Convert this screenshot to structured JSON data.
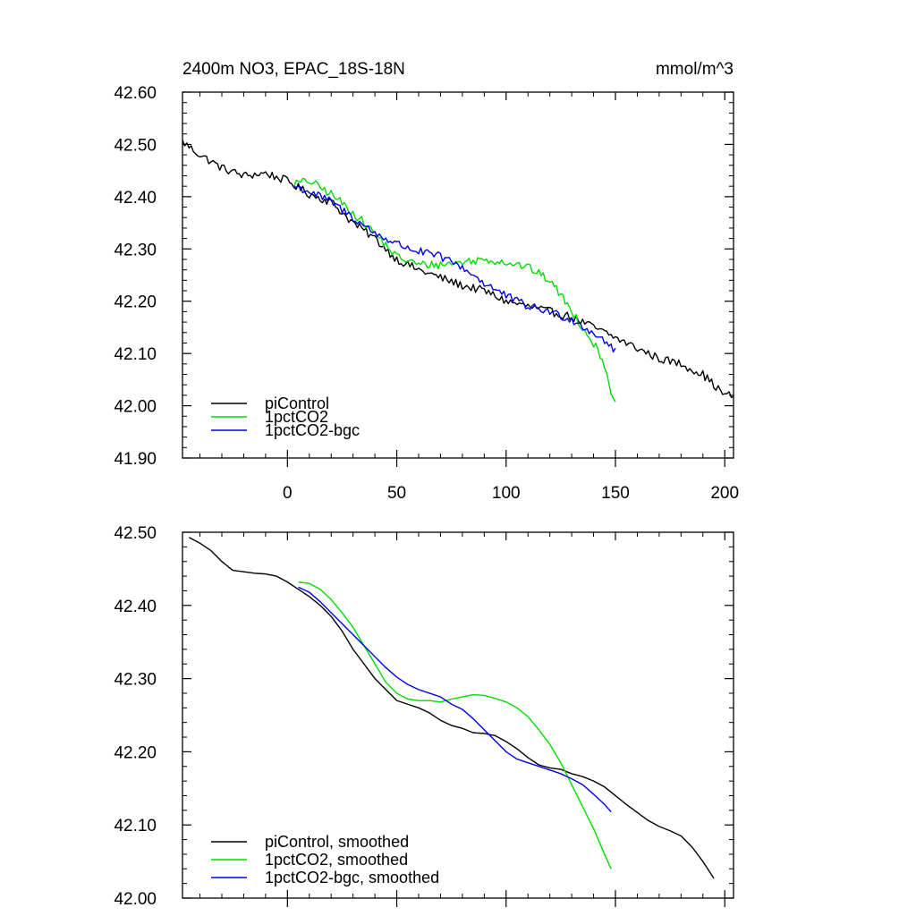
{
  "chart_data": [
    {
      "type": "line",
      "title": "2400m NO3, EPAC_18S-18N",
      "units": "mmol/m^3",
      "xlim": [
        -48,
        204
      ],
      "ylim": [
        41.9,
        42.6
      ],
      "x_ticks": [
        0,
        50,
        100,
        150,
        200
      ],
      "x_tick_labels": [
        "0",
        "50",
        "100",
        "150",
        "200"
      ],
      "y_ticks": [
        41.9,
        42.0,
        42.1,
        42.2,
        42.3,
        42.4,
        42.5,
        42.6
      ],
      "y_tick_labels": [
        "41.90",
        "42.00",
        "42.10",
        "42.20",
        "42.30",
        "42.40",
        "42.50",
        "42.60"
      ],
      "legend_position": "bottom-left",
      "noisy": true,
      "series": [
        {
          "name": "piControl",
          "color": "#000000",
          "x": [
            -48,
            -40,
            -30,
            -20,
            -10,
            0,
            10,
            20,
            30,
            40,
            50,
            60,
            70,
            80,
            90,
            100,
            110,
            120,
            130,
            140,
            150,
            160,
            170,
            180,
            190,
            200,
            204
          ],
          "y": [
            42.505,
            42.48,
            42.455,
            42.44,
            42.445,
            42.43,
            42.405,
            42.39,
            42.35,
            42.32,
            42.28,
            42.26,
            42.245,
            42.23,
            42.22,
            42.2,
            42.19,
            42.18,
            42.17,
            42.15,
            42.13,
            42.11,
            42.09,
            42.08,
            42.06,
            42.02,
            42.02
          ]
        },
        {
          "name": "1pctCO2",
          "color": "#00dd00",
          "x": [
            3,
            10,
            20,
            30,
            40,
            50,
            60,
            70,
            80,
            90,
            100,
            110,
            120,
            127,
            135,
            140,
            145,
            148,
            150
          ],
          "y": [
            42.425,
            42.43,
            42.405,
            42.37,
            42.33,
            42.285,
            42.27,
            42.27,
            42.275,
            42.28,
            42.275,
            42.265,
            42.24,
            42.2,
            42.15,
            42.12,
            42.08,
            42.03,
            42.0
          ]
        },
        {
          "name": "1pctCO2-bgc",
          "color": "#0000ee",
          "x": [
            3,
            10,
            20,
            30,
            40,
            50,
            60,
            70,
            80,
            90,
            100,
            110,
            120,
            130,
            140,
            145,
            150
          ],
          "y": [
            42.42,
            42.41,
            42.39,
            42.36,
            42.33,
            42.31,
            42.295,
            42.285,
            42.265,
            42.235,
            42.21,
            42.19,
            42.18,
            42.165,
            42.14,
            42.125,
            42.105
          ]
        }
      ]
    },
    {
      "type": "line",
      "title": "",
      "units": "",
      "xlim": [
        -48,
        204
      ],
      "ylim": [
        42.0,
        42.5
      ],
      "x_ticks": [
        0,
        50,
        100,
        150,
        200
      ],
      "x_tick_labels": [],
      "y_ticks": [
        42.0,
        42.1,
        42.2,
        42.3,
        42.4,
        42.5
      ],
      "y_tick_labels": [
        "42.00",
        "42.10",
        "42.20",
        "42.30",
        "42.40",
        "42.50"
      ],
      "legend_position": "bottom-left",
      "noisy": false,
      "series": [
        {
          "name": "piControl, smoothed",
          "color": "#000000",
          "x": [
            -45,
            -40,
            -35,
            -30,
            -25,
            -20,
            -15,
            -10,
            -5,
            0,
            5,
            10,
            15,
            20,
            25,
            30,
            35,
            40,
            45,
            50,
            55,
            60,
            65,
            70,
            75,
            80,
            85,
            90,
            95,
            100,
            105,
            110,
            115,
            120,
            125,
            130,
            135,
            140,
            145,
            150,
            155,
            160,
            165,
            170,
            175,
            180,
            185,
            190,
            195
          ],
          "y": [
            42.493,
            42.485,
            42.475,
            42.46,
            42.448,
            42.446,
            42.444,
            42.443,
            42.44,
            42.432,
            42.422,
            42.412,
            42.4,
            42.385,
            42.365,
            42.34,
            42.32,
            42.3,
            42.285,
            42.27,
            42.265,
            42.26,
            42.253,
            42.243,
            42.236,
            42.232,
            42.226,
            42.225,
            42.222,
            42.214,
            42.204,
            42.192,
            42.182,
            42.178,
            42.176,
            42.17,
            42.166,
            42.16,
            42.152,
            42.14,
            42.128,
            42.117,
            42.106,
            42.098,
            42.092,
            42.085,
            42.07,
            42.05,
            42.027
          ]
        },
        {
          "name": "1pctCO2, smoothed",
          "color": "#00dd00",
          "x": [
            5,
            10,
            15,
            20,
            25,
            30,
            35,
            40,
            45,
            50,
            55,
            60,
            65,
            70,
            75,
            80,
            85,
            90,
            95,
            100,
            105,
            110,
            115,
            120,
            125,
            130,
            135,
            140,
            145,
            148
          ],
          "y": [
            42.432,
            42.43,
            42.422,
            42.408,
            42.39,
            42.37,
            42.345,
            42.32,
            42.295,
            42.28,
            42.272,
            42.27,
            42.27,
            42.268,
            42.272,
            42.275,
            42.278,
            42.277,
            42.273,
            42.268,
            42.26,
            42.248,
            42.23,
            42.21,
            42.185,
            42.155,
            42.125,
            42.095,
            42.06,
            42.04
          ]
        },
        {
          "name": "1pctCO2-bgc, smoothed",
          "color": "#0000ee",
          "x": [
            5,
            10,
            15,
            20,
            25,
            30,
            35,
            40,
            45,
            50,
            55,
            60,
            65,
            70,
            75,
            80,
            85,
            90,
            95,
            100,
            105,
            110,
            115,
            120,
            125,
            130,
            135,
            140,
            145,
            148
          ],
          "y": [
            42.425,
            42.418,
            42.405,
            42.39,
            42.375,
            42.36,
            42.345,
            42.33,
            42.315,
            42.302,
            42.292,
            42.285,
            42.28,
            42.275,
            42.265,
            42.258,
            42.245,
            42.23,
            42.215,
            42.2,
            42.19,
            42.185,
            42.18,
            42.175,
            42.17,
            42.163,
            42.155,
            42.142,
            42.128,
            42.118
          ]
        }
      ]
    }
  ]
}
